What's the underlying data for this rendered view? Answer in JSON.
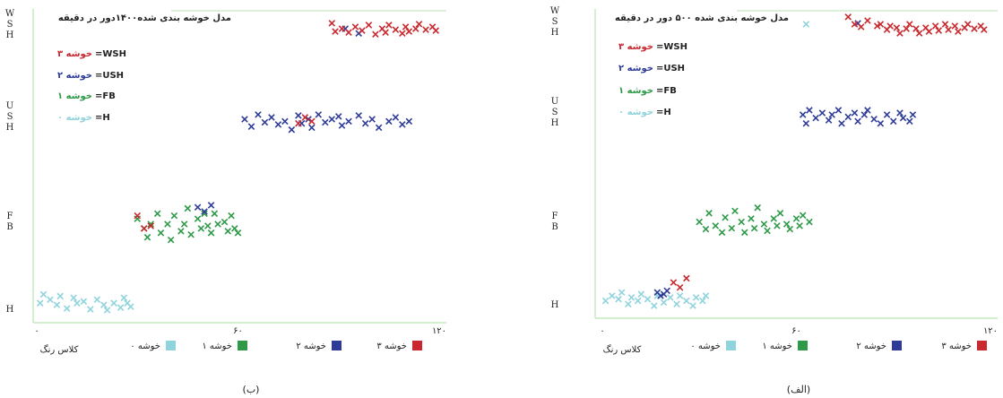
{
  "chart_data": [
    {
      "type": "scatter",
      "panel_label": "(ب)",
      "title": "مدل خوشه بندی شده۱۴۰۰دور در دقیقه",
      "y_labels": [
        "WSH",
        "USH",
        "FB",
        "H"
      ],
      "x_ticks": [
        "۰",
        "۶۰",
        "۱۲۰"
      ],
      "xlim": [
        0,
        120
      ],
      "bottom_label": "کلاس رنگ",
      "legend": [
        {
          "value": "خوشه ۳",
          "key": "WSH"
        },
        {
          "value": "خوشه ۲",
          "key": "USH"
        },
        {
          "value": "خوشه ۱",
          "key": "FB"
        },
        {
          "value": "خوشه ۰",
          "key": "H"
        }
      ],
      "bottom_legend": [
        "خوشه ۳",
        "خوشه ۲",
        "خوشه ۱",
        "خوشه ۰"
      ],
      "series": [
        {
          "name": "خوشه ۰",
          "points": [
            [
              1,
              2.9
            ],
            [
              2,
              2.8
            ],
            [
              4,
              2.86
            ],
            [
              6,
              2.92
            ],
            [
              7,
              2.82
            ],
            [
              9,
              2.96
            ],
            [
              11,
              2.84
            ],
            [
              12,
              2.9
            ],
            [
              14,
              2.88
            ],
            [
              16,
              2.97
            ],
            [
              18,
              2.86
            ],
            [
              20,
              2.92
            ],
            [
              21,
              2.98
            ],
            [
              23,
              2.9
            ],
            [
              25,
              2.95
            ],
            [
              26,
              2.84
            ],
            [
              27,
              2.9
            ],
            [
              28,
              2.94
            ]
          ]
        },
        {
          "name": "خوشه ۱",
          "points": [
            [
              30,
              1.95
            ],
            [
              32,
              2.05
            ],
            [
              33,
              2.15
            ],
            [
              34,
              2.0
            ],
            [
              36,
              1.9
            ],
            [
              37,
              2.1
            ],
            [
              39,
              2.0
            ],
            [
              40,
              2.18
            ],
            [
              41,
              1.92
            ],
            [
              43,
              2.08
            ],
            [
              44,
              2.0
            ],
            [
              45,
              1.85
            ],
            [
              46,
              2.12
            ],
            [
              48,
              1.95
            ],
            [
              49,
              2.05
            ],
            [
              50,
              1.9
            ],
            [
              51,
              2.02
            ],
            [
              52,
              2.1
            ],
            [
              53,
              1.9
            ],
            [
              54,
              2.0
            ],
            [
              56,
              1.98
            ],
            [
              57,
              2.08
            ],
            [
              58,
              1.92
            ],
            [
              59,
              2.05
            ],
            [
              60,
              2.1
            ]
          ]
        },
        {
          "name": "خوشه ۲",
          "points": [
            [
              48,
              1.84
            ],
            [
              50,
              1.88
            ],
            [
              52,
              1.82
            ],
            [
              62,
              1.0
            ],
            [
              64,
              1.07
            ],
            [
              66,
              0.95
            ],
            [
              68,
              1.03
            ],
            [
              70,
              0.98
            ],
            [
              72,
              1.05
            ],
            [
              74,
              1.02
            ],
            [
              76,
              1.1
            ],
            [
              78,
              0.96
            ],
            [
              79,
              1.04
            ],
            [
              81,
              1.0
            ],
            [
              82,
              1.08
            ],
            [
              84,
              0.95
            ],
            [
              86,
              1.03
            ],
            [
              88,
              1.0
            ],
            [
              90,
              0.97
            ],
            [
              91,
              1.06
            ],
            [
              93,
              1.02
            ],
            [
              96,
              0.96
            ],
            [
              98,
              1.04
            ],
            [
              100,
              1.0
            ],
            [
              102,
              1.08
            ],
            [
              105,
              1.02
            ],
            [
              107,
              0.98
            ],
            [
              109,
              1.05
            ],
            [
              111,
              1.02
            ],
            [
              92,
              0.02
            ],
            [
              96,
              0.07
            ]
          ]
        },
        {
          "name": "خوشه ۳",
          "points": [
            [
              30,
              1.92
            ],
            [
              32,
              2.05
            ],
            [
              34,
              2.02
            ],
            [
              78,
              1.04
            ],
            [
              80,
              0.98
            ],
            [
              82,
              1.02
            ],
            [
              88,
              -0.04
            ],
            [
              89,
              0.05
            ],
            [
              91,
              0.02
            ],
            [
              93,
              0.06
            ],
            [
              95,
              0.0
            ],
            [
              97,
              0.04
            ],
            [
              99,
              -0.02
            ],
            [
              101,
              0.08
            ],
            [
              103,
              0.02
            ],
            [
              104,
              0.06
            ],
            [
              105,
              -0.02
            ],
            [
              107,
              0.03
            ],
            [
              109,
              0.07
            ],
            [
              110,
              0.0
            ],
            [
              111,
              0.05
            ],
            [
              113,
              0.02
            ],
            [
              114,
              -0.03
            ],
            [
              116,
              0.03
            ],
            [
              118,
              0.0
            ],
            [
              119,
              0.04
            ]
          ]
        }
      ]
    },
    {
      "type": "scatter",
      "panel_label": "(الف)",
      "title": "مدل خوشه بندی شده ۵۰۰ دور در دقیقه",
      "y_labels": [
        "WSH",
        "USH",
        "FB",
        "H"
      ],
      "x_ticks": [
        "۰",
        "۶۰",
        "۱۲۰"
      ],
      "xlim": [
        0,
        120
      ],
      "bottom_label": "کلاس رنگ",
      "legend": [
        {
          "value": "خوشه ۳",
          "key": "WSH"
        },
        {
          "value": "خوشه ۲",
          "key": "USH"
        },
        {
          "value": "خوشه ۱",
          "key": "FB"
        },
        {
          "value": "خوشه ۰",
          "key": "H"
        }
      ],
      "bottom_legend": [
        "خوشه ۳",
        "خوشه ۲",
        "خوشه ۱",
        "خوشه ۰"
      ],
      "series": [
        {
          "name": "خوشه ۰",
          "points": [
            [
              1,
              2.92
            ],
            [
              3,
              2.86
            ],
            [
              5,
              2.9
            ],
            [
              6,
              2.82
            ],
            [
              8,
              2.96
            ],
            [
              9,
              2.88
            ],
            [
              11,
              2.92
            ],
            [
              12,
              2.84
            ],
            [
              14,
              2.9
            ],
            [
              16,
              2.98
            ],
            [
              17,
              2.86
            ],
            [
              19,
              2.94
            ],
            [
              21,
              2.88
            ],
            [
              23,
              2.96
            ],
            [
              24,
              2.86
            ],
            [
              26,
              2.92
            ],
            [
              28,
              2.98
            ],
            [
              29,
              2.88
            ],
            [
              31,
              2.92
            ],
            [
              32,
              2.86
            ],
            [
              63,
              0.0
            ]
          ]
        },
        {
          "name": "خوشه ۱",
          "points": [
            [
              30,
              1.98
            ],
            [
              32,
              2.06
            ],
            [
              33,
              1.9
            ],
            [
              35,
              2.02
            ],
            [
              37,
              2.1
            ],
            [
              38,
              1.94
            ],
            [
              40,
              2.05
            ],
            [
              41,
              1.88
            ],
            [
              43,
              1.98
            ],
            [
              44,
              2.1
            ],
            [
              46,
              1.95
            ],
            [
              47,
              2.05
            ],
            [
              48,
              1.85
            ],
            [
              50,
              2.0
            ],
            [
              51,
              2.08
            ],
            [
              53,
              1.95
            ],
            [
              54,
              2.02
            ],
            [
              55,
              1.9
            ],
            [
              57,
              2.0
            ],
            [
              58,
              2.06
            ],
            [
              60,
              1.95
            ],
            [
              61,
              2.02
            ],
            [
              62,
              1.92
            ],
            [
              64,
              1.98
            ]
          ]
        },
        {
          "name": "خوشه ۲",
          "points": [
            [
              17,
              2.82
            ],
            [
              18,
              2.86
            ],
            [
              19,
              2.84
            ],
            [
              20,
              2.8
            ],
            [
              62,
              1.0
            ],
            [
              63,
              1.08
            ],
            [
              64,
              0.95
            ],
            [
              66,
              1.03
            ],
            [
              68,
              0.98
            ],
            [
              70,
              1.05
            ],
            [
              71,
              1.0
            ],
            [
              73,
              0.95
            ],
            [
              74,
              1.08
            ],
            [
              76,
              1.02
            ],
            [
              78,
              0.98
            ],
            [
              79,
              1.06
            ],
            [
              81,
              1.0
            ],
            [
              82,
              0.95
            ],
            [
              84,
              1.04
            ],
            [
              86,
              1.08
            ],
            [
              88,
              1.0
            ],
            [
              90,
              1.06
            ],
            [
              92,
              0.98
            ],
            [
              93,
              1.03
            ],
            [
              95,
              1.06
            ],
            [
              96,
              1.0
            ],
            [
              79,
              -0.01
            ]
          ]
        },
        {
          "name": "خوشه ۳",
          "points": [
            [
              22,
              2.7
            ],
            [
              24,
              2.76
            ],
            [
              26,
              2.65
            ],
            [
              76,
              -0.08
            ],
            [
              78,
              0.0
            ],
            [
              80,
              0.03
            ],
            [
              82,
              -0.04
            ],
            [
              85,
              0.02
            ],
            [
              86,
              0.0
            ],
            [
              88,
              0.06
            ],
            [
              89,
              0.02
            ],
            [
              91,
              0.04
            ],
            [
              92,
              0.1
            ],
            [
              94,
              0.05
            ],
            [
              95,
              0.0
            ],
            [
              97,
              0.05
            ],
            [
              98,
              0.1
            ],
            [
              100,
              0.04
            ],
            [
              101,
              0.08
            ],
            [
              103,
              0.02
            ],
            [
              104,
              0.07
            ],
            [
              106,
              0.0
            ],
            [
              107,
              0.06
            ],
            [
              109,
              0.02
            ],
            [
              110,
              0.08
            ],
            [
              112,
              0.04
            ],
            [
              113,
              0.0
            ],
            [
              115,
              0.05
            ],
            [
              117,
              0.02
            ],
            [
              118,
              0.06
            ]
          ]
        }
      ]
    }
  ],
  "colors": {
    "cluster0": "#8fd3dc",
    "cluster1": "#2e9a48",
    "cluster2": "#2e3c98",
    "cluster3": "#c8282e",
    "axis": "#b9e6b0",
    "text": "#222222"
  }
}
